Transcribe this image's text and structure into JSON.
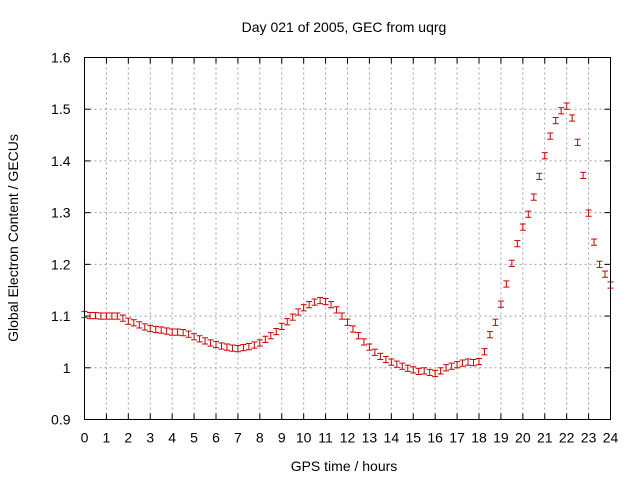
{
  "chart_data": {
    "type": "scatter",
    "title": "Day 021 of 2005, GEC from uqrg",
    "xlabel": "GPS time / hours",
    "ylabel": "Global Electron Content / GECUs",
    "xlim": [
      0,
      24
    ],
    "ylim": [
      0.9,
      1.6
    ],
    "xticks": [
      "0",
      "1",
      "2",
      "3",
      "4",
      "5",
      "6",
      "7",
      "8",
      "9",
      "10",
      "11",
      "12",
      "13",
      "14",
      "15",
      "16",
      "17",
      "18",
      "19",
      "20",
      "21",
      "22",
      "23",
      "24"
    ],
    "yticks": [
      "0.9",
      "1",
      "1.1",
      "1.2",
      "1.3",
      "1.4",
      "1.5",
      "1.6"
    ],
    "grid": true,
    "marker_color": "#cc0000",
    "error_half_width": 0.006,
    "series": [
      {
        "x": [
          0,
          0.25,
          0.5,
          0.75,
          1,
          1.25,
          1.5,
          1.75,
          2,
          2.25,
          2.5,
          2.75,
          3,
          3.25,
          3.5,
          3.75,
          4,
          4.25,
          4.5,
          4.75,
          5,
          5.25,
          5.5,
          5.75,
          6,
          6.25,
          6.5,
          6.75,
          7,
          7.25,
          7.5,
          7.75,
          8,
          8.25,
          8.5,
          8.75,
          9,
          9.25,
          9.5,
          9.75,
          10,
          10.25,
          10.5,
          10.75,
          11,
          11.25,
          11.5,
          11.75,
          12,
          12.25,
          12.5,
          12.75,
          13,
          13.25,
          13.5,
          13.75,
          14,
          14.25,
          14.5,
          14.75,
          15,
          15.25,
          15.5,
          15.75,
          16,
          16.25,
          16.5,
          16.75,
          17,
          17.25,
          17.5,
          17.75,
          18,
          18.25,
          18.5,
          18.75,
          19,
          19.25,
          19.5,
          19.75,
          20,
          20.25,
          20.5,
          20.75,
          21,
          21.25,
          21.5,
          21.75,
          22,
          22.25,
          22.5,
          22.75,
          23,
          23.25,
          23.5,
          23.75,
          24
        ],
        "y": [
          1.103,
          1.101,
          1.101,
          1.1,
          1.1,
          1.1,
          1.1,
          1.096,
          1.09,
          1.087,
          1.083,
          1.079,
          1.076,
          1.074,
          1.073,
          1.071,
          1.069,
          1.069,
          1.068,
          1.065,
          1.06,
          1.056,
          1.052,
          1.048,
          1.045,
          1.042,
          1.04,
          1.038,
          1.037,
          1.039,
          1.041,
          1.044,
          1.048,
          1.055,
          1.062,
          1.07,
          1.08,
          1.089,
          1.098,
          1.108,
          1.116,
          1.122,
          1.127,
          1.13,
          1.128,
          1.122,
          1.112,
          1.1,
          1.088,
          1.075,
          1.062,
          1.05,
          1.04,
          1.03,
          1.022,
          1.016,
          1.011,
          1.007,
          1.003,
          0.999,
          0.996,
          0.993,
          0.994,
          0.991,
          0.989,
          0.994,
          1.0,
          1.003,
          1.006,
          1.009,
          1.011,
          1.01,
          1.012,
          1.031,
          1.064,
          1.088,
          1.123,
          1.162,
          1.202,
          1.24,
          1.272,
          1.297,
          1.33,
          1.37,
          1.41,
          1.448,
          1.478,
          1.497,
          1.506,
          1.483,
          1.436,
          1.372,
          1.299,
          1.243,
          1.2,
          1.181,
          1.16
        ]
      }
    ]
  }
}
